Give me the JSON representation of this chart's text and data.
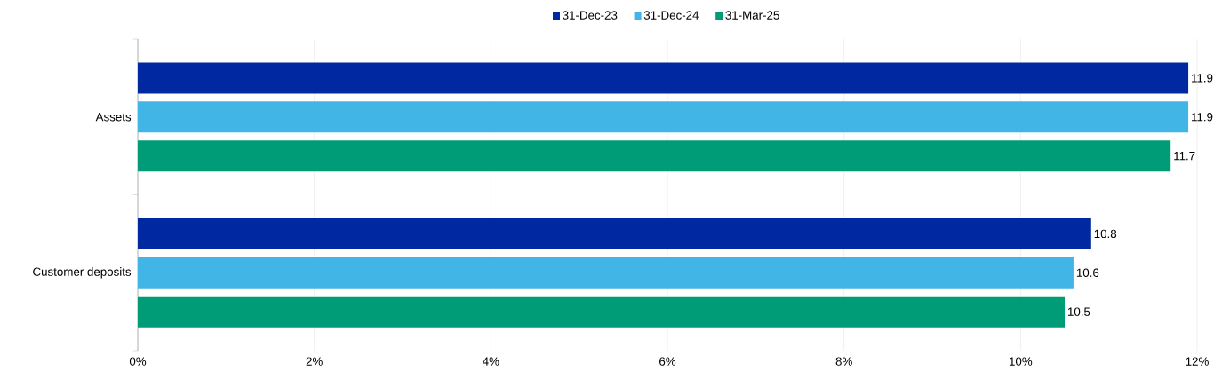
{
  "chart_data": {
    "type": "bar",
    "orientation": "horizontal",
    "categories": [
      "Assets",
      "Customer deposits"
    ],
    "series": [
      {
        "name": "31-Dec-23",
        "color": "#0028a0",
        "values": [
          11.9,
          10.8
        ]
      },
      {
        "name": "31-Dec-24",
        "color": "#41b6e6",
        "values": [
          11.9,
          10.6
        ]
      },
      {
        "name": "31-Mar-25",
        "color": "#009b77",
        "values": [
          11.7,
          10.5
        ]
      }
    ],
    "xlim": [
      0,
      12
    ],
    "xticks": [
      {
        "value": 0,
        "label": "0%"
      },
      {
        "value": 2,
        "label": "2%"
      },
      {
        "value": 4,
        "label": "4%"
      },
      {
        "value": 6,
        "label": "6%"
      },
      {
        "value": 8,
        "label": "8%"
      },
      {
        "value": 10,
        "label": "10%"
      },
      {
        "value": 12,
        "label": "12%"
      }
    ],
    "grid": "x",
    "legend": "top",
    "data_labels": true
  }
}
